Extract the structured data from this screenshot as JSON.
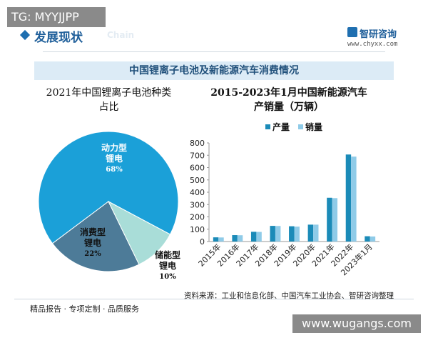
{
  "watermark_top": "TG: MYYJJPP",
  "watermark_bottom": "www.wugangs.com",
  "header": {
    "section": "发展现状",
    "faint": "Chain",
    "brand": "智研咨询",
    "site": "www.chyxx.com"
  },
  "banner": "中国锂离子电池及新能源汽车消费情况",
  "chart_data": [
    {
      "type": "pie",
      "title": "2021年中国锂离子电池种类占比",
      "categories": [
        "动力型锂电",
        "消费型锂电",
        "储能型锂电"
      ],
      "values": [
        68,
        22,
        10
      ],
      "value_labels": [
        "68%",
        "22%",
        "10%"
      ],
      "colors": [
        "#1ba0d8",
        "#4d7b98",
        "#a9ddd8"
      ]
    },
    {
      "type": "bar",
      "title": "2015-2023年1月中国新能源汽车产销量（万辆）",
      "categories": [
        "2015年",
        "2016年",
        "2017年",
        "2018年",
        "2019年",
        "2020年",
        "2021年",
        "2022年",
        "2023年1月"
      ],
      "series": [
        {
          "name": "产量",
          "color": "#1b8bb8",
          "values": [
            34,
            52,
            79,
            127,
            124,
            137,
            355,
            706,
            43
          ]
        },
        {
          "name": "销量",
          "color": "#8fcbe8",
          "values": [
            33,
            51,
            78,
            126,
            121,
            137,
            352,
            689,
            41
          ]
        }
      ],
      "ylim": [
        0,
        800
      ],
      "yticks": [
        0,
        100,
        200,
        300,
        400,
        500,
        600,
        700,
        800
      ],
      "legend": "top"
    }
  ],
  "footer": {
    "slogan": "精品报告 · 专项定制 · 品质服务",
    "source": "资料来源：工业和信息化部、中国汽车工业协会、智研咨询整理"
  }
}
